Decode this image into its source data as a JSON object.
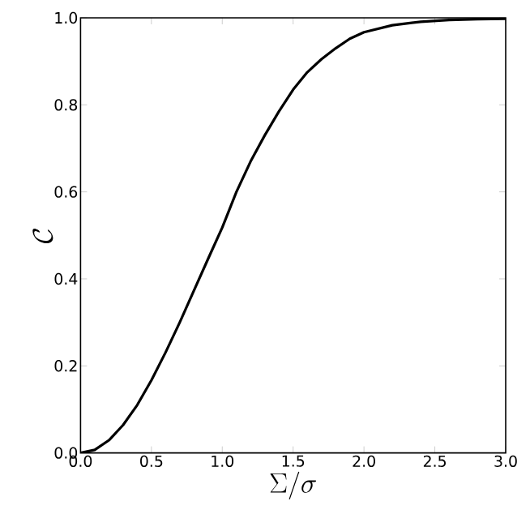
{
  "chart_data": {
    "type": "line",
    "xlabel": "\\Sigma/\\sigma",
    "ylabel": "\\mathcal{C}",
    "x": [
      0,
      0.1,
      0.2,
      0.3,
      0.4,
      0.5,
      0.6,
      0.7,
      0.8,
      0.9,
      1.0,
      1.1,
      1.2,
      1.3,
      1.4,
      1.5,
      1.6,
      1.7,
      1.8,
      1.9,
      2.0,
      2.2,
      2.4,
      2.6,
      2.8,
      3.0
    ],
    "series": [
      {
        "color": "#000000",
        "values": [
          0,
          0.007,
          0.029,
          0.064,
          0.11,
          0.167,
          0.231,
          0.3,
          0.373,
          0.446,
          0.518,
          0.6,
          0.67,
          0.73,
          0.785,
          0.835,
          0.875,
          0.905,
          0.93,
          0.952,
          0.967,
          0.983,
          0.991,
          0.995,
          0.997,
          0.998
        ]
      }
    ],
    "xlim": [
      0,
      3
    ],
    "ylim": [
      0,
      1
    ],
    "xticks": [
      {
        "value": 0,
        "label": "0.0"
      },
      {
        "value": 0.5,
        "label": "0.5"
      },
      {
        "value": 1,
        "label": "1.0"
      },
      {
        "value": 1.5,
        "label": "1.5"
      },
      {
        "value": 2,
        "label": "2.0"
      },
      {
        "value": 2.5,
        "label": "2.5"
      },
      {
        "value": 3,
        "label": "3.0"
      }
    ],
    "yticks": [
      {
        "value": 0,
        "label": "0.0"
      },
      {
        "value": 0.2,
        "label": "0.2"
      },
      {
        "value": 0.4,
        "label": "0.4"
      },
      {
        "value": 0.6,
        "label": "0.6"
      },
      {
        "value": 0.8,
        "label": "0.8"
      },
      {
        "value": 1,
        "label": "1.0"
      }
    ],
    "grid": false,
    "marker": "none",
    "line_style": "solid"
  }
}
